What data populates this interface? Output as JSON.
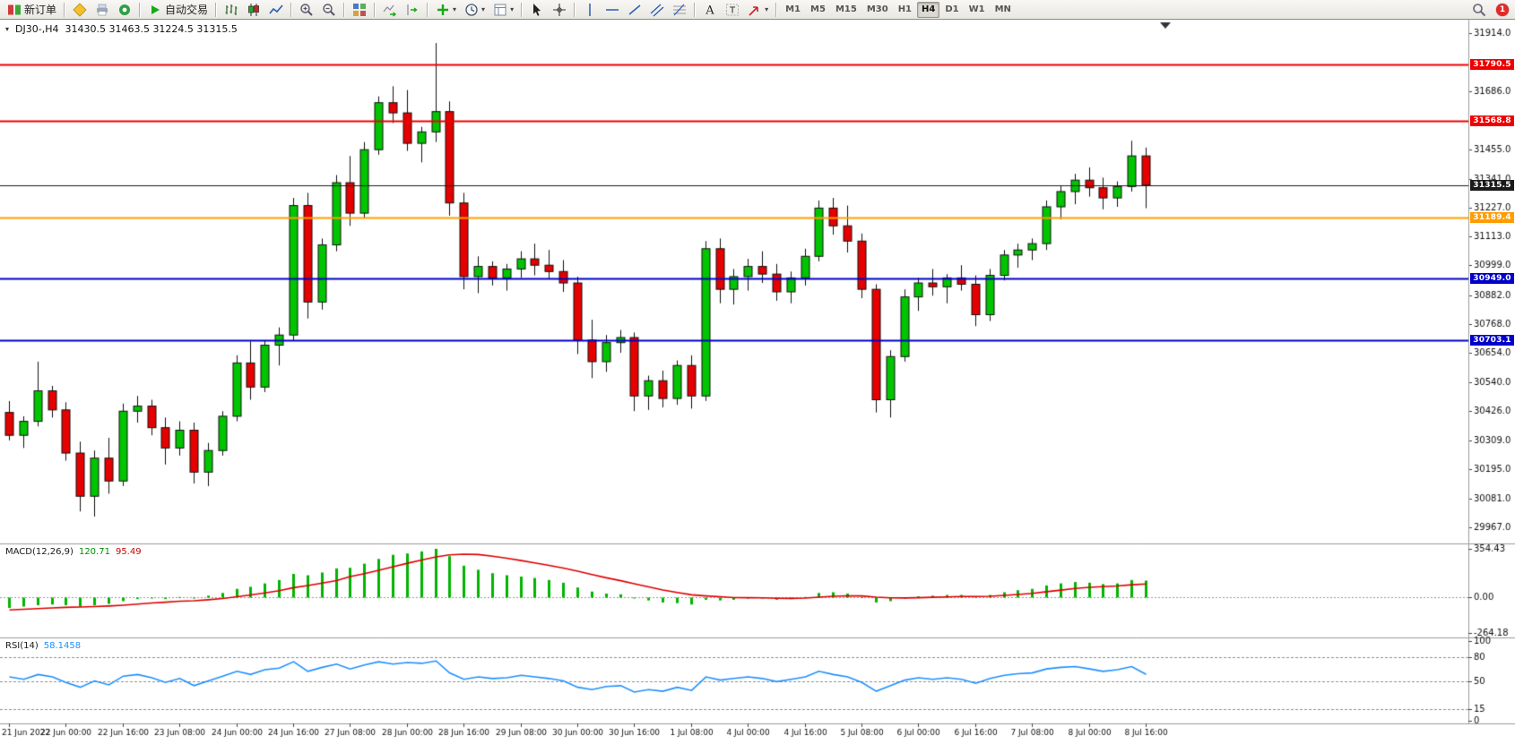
{
  "toolbar": {
    "new_order_label": "新订单",
    "autotrading_label": "自动交易",
    "timeframes": [
      "M1",
      "M5",
      "M15",
      "M30",
      "H1",
      "H4",
      "D1",
      "W1",
      "MN"
    ],
    "active_timeframe": "H4",
    "notification_count": "1"
  },
  "icon_glyphs": {
    "caret": "▾",
    "shift_marker": "▼"
  },
  "chart_header": {
    "symbol_timeframe": "DJ30-,H4",
    "ohlc": "31430.5 31463.5 31224.5 31315.5"
  },
  "indicators": {
    "macd": {
      "name": "MACD(12,26,9)",
      "main_value": "120.71",
      "signal_value": "95.49"
    },
    "rsi": {
      "name": "RSI(14)",
      "value": "58.1458"
    }
  },
  "colors": {
    "bull": "#00c500",
    "bear": "#e60000",
    "wick": "#111111",
    "macd_histogram": "#00b400",
    "macd_signal": "#e00000",
    "rsi_line": "#1e90ff",
    "resistance_line": "#ee0000",
    "support_line": "#0000c8",
    "level_line": "#ff9d00",
    "bid_line": "#1a1a1a"
  },
  "chart_data": [
    {
      "type": "candlestick",
      "title": "DJ30-,H4",
      "symbol": "DJ30-",
      "timeframe": "H4",
      "current_bar": {
        "open": 31430.5,
        "high": 31463.5,
        "low": 31224.5,
        "close": 31315.5
      },
      "grid": false,
      "legend_position": "none",
      "ylim": [
        29904,
        31967
      ],
      "y_ticks": [
        31914.0,
        31686.0,
        31455.0,
        31341.0,
        31227.0,
        31113.0,
        30999.0,
        30882.0,
        30768.0,
        30654.0,
        30540.0,
        30426.0,
        30309.0,
        30195.0,
        30081.0,
        29967.0
      ],
      "price_lines": [
        {
          "value": 31790.5,
          "color": "#ee0000",
          "role": "resistance"
        },
        {
          "value": 31568.8,
          "color": "#ee0000",
          "role": "resistance"
        },
        {
          "value": 31315.5,
          "color": "#1a1a1a",
          "role": "bid"
        },
        {
          "value": 31189.4,
          "color": "#ff9d00",
          "role": "level"
        },
        {
          "value": 30949.0,
          "color": "#0000c8",
          "role": "support"
        },
        {
          "value": 30703.1,
          "color": "#0000c8",
          "role": "support"
        }
      ],
      "x_label_step": 4,
      "x_labels": [
        "21 Jun 2022",
        "22 Jun 00:00",
        "22 Jun 16:00",
        "23 Jun 08:00",
        "24 Jun 00:00",
        "24 Jun 16:00",
        "27 Jun 08:00",
        "28 Jun 00:00",
        "28 Jun 16:00",
        "29 Jun 08:00",
        "30 Jun 00:00",
        "30 Jun 16:00",
        "1 Jul 08:00",
        "4 Jul 00:00",
        "4 Jul 16:00",
        "5 Jul 08:00",
        "6 Jul 00:00",
        "6 Jul 16:00",
        "7 Jul 08:00",
        "8 Jul 00:00",
        "8 Jul 16:00"
      ],
      "candles_ohlc": [
        [
          30420,
          30465,
          30310,
          30330
        ],
        [
          30330,
          30405,
          30280,
          30385
        ],
        [
          30385,
          30620,
          30365,
          30505
        ],
        [
          30505,
          30525,
          30400,
          30430
        ],
        [
          30430,
          30460,
          30230,
          30260
        ],
        [
          30260,
          30305,
          30030,
          30090
        ],
        [
          30090,
          30270,
          30010,
          30240
        ],
        [
          30240,
          30320,
          30100,
          30150
        ],
        [
          30150,
          30455,
          30130,
          30425
        ],
        [
          30425,
          30485,
          30380,
          30445
        ],
        [
          30445,
          30470,
          30330,
          30360
        ],
        [
          30360,
          30400,
          30215,
          30280
        ],
        [
          30280,
          30385,
          30250,
          30350
        ],
        [
          30350,
          30380,
          30140,
          30185
        ],
        [
          30185,
          30300,
          30130,
          30270
        ],
        [
          30270,
          30425,
          30250,
          30405
        ],
        [
          30405,
          30645,
          30385,
          30615
        ],
        [
          30615,
          30700,
          30470,
          30520
        ],
        [
          30520,
          30705,
          30500,
          30685
        ],
        [
          30685,
          30755,
          30605,
          30725
        ],
        [
          30725,
          31265,
          30705,
          31235
        ],
        [
          31235,
          31285,
          30790,
          30855
        ],
        [
          30855,
          31105,
          30825,
          31080
        ],
        [
          31080,
          31355,
          31055,
          31325
        ],
        [
          31325,
          31430,
          31155,
          31205
        ],
        [
          31205,
          31485,
          31185,
          31455
        ],
        [
          31455,
          31665,
          31435,
          31640
        ],
        [
          31640,
          31705,
          31560,
          31600
        ],
        [
          31600,
          31690,
          31450,
          31480
        ],
        [
          31480,
          31545,
          31405,
          31525
        ],
        [
          31525,
          31875,
          31485,
          31605
        ],
        [
          31605,
          31645,
          31195,
          31245
        ],
        [
          31245,
          31285,
          30905,
          30955
        ],
        [
          30955,
          31035,
          30890,
          30995
        ],
        [
          30995,
          31015,
          30920,
          30950
        ],
        [
          30950,
          31005,
          30900,
          30985
        ],
        [
          30985,
          31055,
          30950,
          31025
        ],
        [
          31025,
          31085,
          30960,
          31000
        ],
        [
          31000,
          31060,
          30945,
          30975
        ],
        [
          30975,
          31020,
          30895,
          30930
        ],
        [
          30930,
          30955,
          30650,
          30705
        ],
        [
          30705,
          30785,
          30555,
          30620
        ],
        [
          30620,
          30725,
          30580,
          30695
        ],
        [
          30695,
          30745,
          30655,
          30715
        ],
        [
          30715,
          30735,
          30425,
          30485
        ],
        [
          30485,
          30565,
          30430,
          30545
        ],
        [
          30545,
          30585,
          30440,
          30475
        ],
        [
          30475,
          30625,
          30450,
          30605
        ],
        [
          30605,
          30645,
          30435,
          30485
        ],
        [
          30485,
          31095,
          30465,
          31065
        ],
        [
          31065,
          31105,
          30850,
          30905
        ],
        [
          30905,
          30985,
          30845,
          30955
        ],
        [
          30955,
          31025,
          30900,
          30995
        ],
        [
          30995,
          31055,
          30930,
          30965
        ],
        [
          30965,
          31005,
          30860,
          30895
        ],
        [
          30895,
          30975,
          30850,
          30950
        ],
        [
          30950,
          31065,
          30920,
          31035
        ],
        [
          31035,
          31255,
          31015,
          31225
        ],
        [
          31225,
          31265,
          31120,
          31155
        ],
        [
          31155,
          31235,
          31050,
          31095
        ],
        [
          31095,
          31125,
          30870,
          30905
        ],
        [
          30905,
          30925,
          30420,
          30470
        ],
        [
          30470,
          30665,
          30400,
          30640
        ],
        [
          30640,
          30905,
          30620,
          30875
        ],
        [
          30875,
          30950,
          30820,
          30930
        ],
        [
          30930,
          30985,
          30880,
          30915
        ],
        [
          30915,
          30965,
          30850,
          30950
        ],
        [
          30950,
          31000,
          30900,
          30925
        ],
        [
          30925,
          30960,
          30760,
          30805
        ],
        [
          30805,
          30985,
          30780,
          30960
        ],
        [
          30960,
          31060,
          30940,
          31040
        ],
        [
          31040,
          31085,
          30990,
          31060
        ],
        [
          31060,
          31105,
          31020,
          31085
        ],
        [
          31085,
          31255,
          31060,
          31230
        ],
        [
          31230,
          31315,
          31180,
          31290
        ],
        [
          31290,
          31360,
          31240,
          31335
        ],
        [
          31335,
          31385,
          31270,
          31305
        ],
        [
          31305,
          31345,
          31220,
          31265
        ],
        [
          31265,
          31330,
          31230,
          31310
        ],
        [
          31310,
          31490,
          31290,
          31430.5
        ],
        [
          31430.5,
          31463.5,
          31224.5,
          31315.5
        ]
      ]
    },
    {
      "type": "bar",
      "subtype": "macd",
      "title": "MACD(12,26,9)",
      "current_main": 120.71,
      "current_signal": 95.49,
      "ylim": [
        -297,
        387
      ],
      "y_ticks": [
        354.43,
        0.0,
        -264.18
      ],
      "histogram": [
        -80,
        -70,
        -60,
        -55,
        -60,
        -70,
        -60,
        -50,
        -30,
        -15,
        -10,
        -15,
        0,
        -10,
        10,
        30,
        60,
        75,
        100,
        125,
        170,
        160,
        180,
        210,
        215,
        245,
        280,
        310,
        320,
        335,
        354,
        300,
        230,
        200,
        175,
        160,
        150,
        140,
        125,
        105,
        70,
        40,
        25,
        20,
        -10,
        -25,
        -40,
        -45,
        -55,
        -20,
        -25,
        -20,
        -10,
        -10,
        -20,
        -15,
        0,
        30,
        35,
        25,
        0,
        -40,
        -30,
        -10,
        5,
        10,
        15,
        15,
        5,
        15,
        35,
        50,
        60,
        85,
        100,
        110,
        105,
        95,
        100,
        125,
        120.71
      ],
      "signal": [
        -95,
        -90,
        -85,
        -80,
        -76,
        -73,
        -70,
        -66,
        -60,
        -52,
        -44,
        -38,
        -31,
        -27,
        -20,
        -11,
        2,
        15,
        30,
        47,
        69,
        85,
        102,
        121,
        150,
        172,
        196,
        222,
        248,
        272,
        295,
        310,
        315,
        312,
        300,
        285,
        268,
        250,
        232,
        213,
        190,
        165,
        141,
        120,
        97,
        74,
        52,
        33,
        16,
        8,
        2,
        -4,
        -5,
        -6,
        -9,
        -10,
        -8,
        -1,
        6,
        9,
        8,
        -1,
        -6,
        -7,
        -5,
        -2,
        1,
        4,
        4,
        6,
        12,
        19,
        27,
        39,
        51,
        63,
        71,
        76,
        81,
        90,
        95.49
      ]
    },
    {
      "type": "line",
      "subtype": "rsi",
      "title": "RSI(14)",
      "current": 58.1458,
      "ylim": [
        0,
        100
      ],
      "y_ticks": [
        100,
        80,
        50,
        15,
        0
      ],
      "levels": [
        80,
        50,
        15
      ],
      "values": [
        55,
        52,
        58,
        55,
        48,
        42,
        50,
        45,
        56,
        58,
        54,
        48,
        53,
        44,
        50,
        56,
        62,
        58,
        64,
        66,
        74,
        62,
        67,
        71,
        65,
        70,
        74,
        71,
        73,
        72,
        75,
        60,
        52,
        55,
        53,
        54,
        57,
        55,
        53,
        50,
        42,
        39,
        43,
        44,
        36,
        39,
        37,
        42,
        38,
        55,
        51,
        53,
        55,
        53,
        49,
        52,
        55,
        62,
        58,
        55,
        48,
        37,
        44,
        51,
        54,
        52,
        54,
        52,
        47,
        53,
        57,
        59,
        60,
        65,
        67,
        68,
        65,
        62,
        64,
        68,
        58.15
      ]
    }
  ]
}
